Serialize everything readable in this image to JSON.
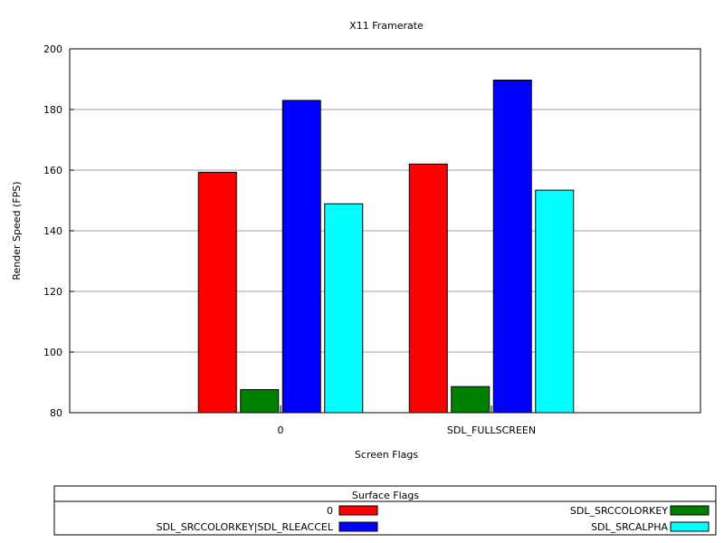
{
  "chart_data": {
    "type": "bar",
    "title": "X11 Framerate",
    "xlabel": "Screen Flags",
    "ylabel": "Render Speed (FPS)",
    "ylim": [
      80,
      200
    ],
    "yticks": [
      80,
      100,
      120,
      140,
      160,
      180,
      200
    ],
    "categories": [
      "0",
      "SDL_FULLSCREEN"
    ],
    "grid": true,
    "legend": {
      "title": "Surface Flags",
      "position": "bottom"
    },
    "series": [
      {
        "name": "0",
        "color": "#ff0000",
        "values": [
          159.3,
          162.0
        ]
      },
      {
        "name": "SDL_SRCCOLORKEY",
        "color": "#008000",
        "values": [
          87.6,
          88.6
        ]
      },
      {
        "name": "SDL_SRCCOLORKEY|SDL_RLEACCEL",
        "color": "#0000ff",
        "values": [
          183.0,
          189.7
        ]
      },
      {
        "name": "SDL_SRCALPHA",
        "color": "#00ffff",
        "values": [
          148.9,
          153.4
        ]
      }
    ]
  }
}
